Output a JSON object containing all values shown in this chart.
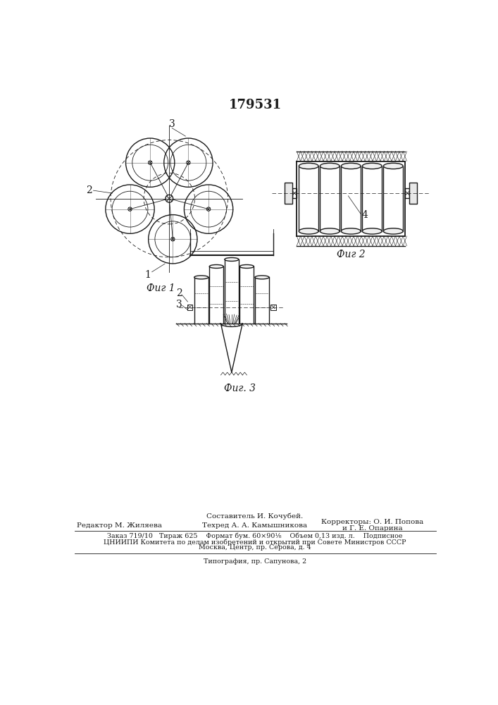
{
  "title_number": "179531",
  "fig1_label": "Фиг 1",
  "fig2_label": "Фиг 2",
  "fig3_label": "Фиг. 3",
  "footer_composer": "Составитель И. Кочубей.",
  "footer_editor": "Редактор М. Жиляева",
  "footer_tech": "Техред А. А. Камышникова",
  "footer_correctors": "Корректоры: О. И. Попова",
  "footer_correctors2": "и Г. Е. Опарина",
  "footer_line1": "Заказ 719/10   Тираж 625    Формат бум. 60×90¹⁄₈    Объем 0,13 изд. л.    Подписное",
  "footer_line2": "ЦНИИПИ Комитета по делам изобретений и открытий при Совете Министров СССР",
  "footer_line3": "Москва, Центр, пр. Серова, д. 4",
  "footer_line4": "Типография, пр. Сапунова, 2",
  "bg_color": "#ffffff",
  "line_color": "#1a1a1a"
}
